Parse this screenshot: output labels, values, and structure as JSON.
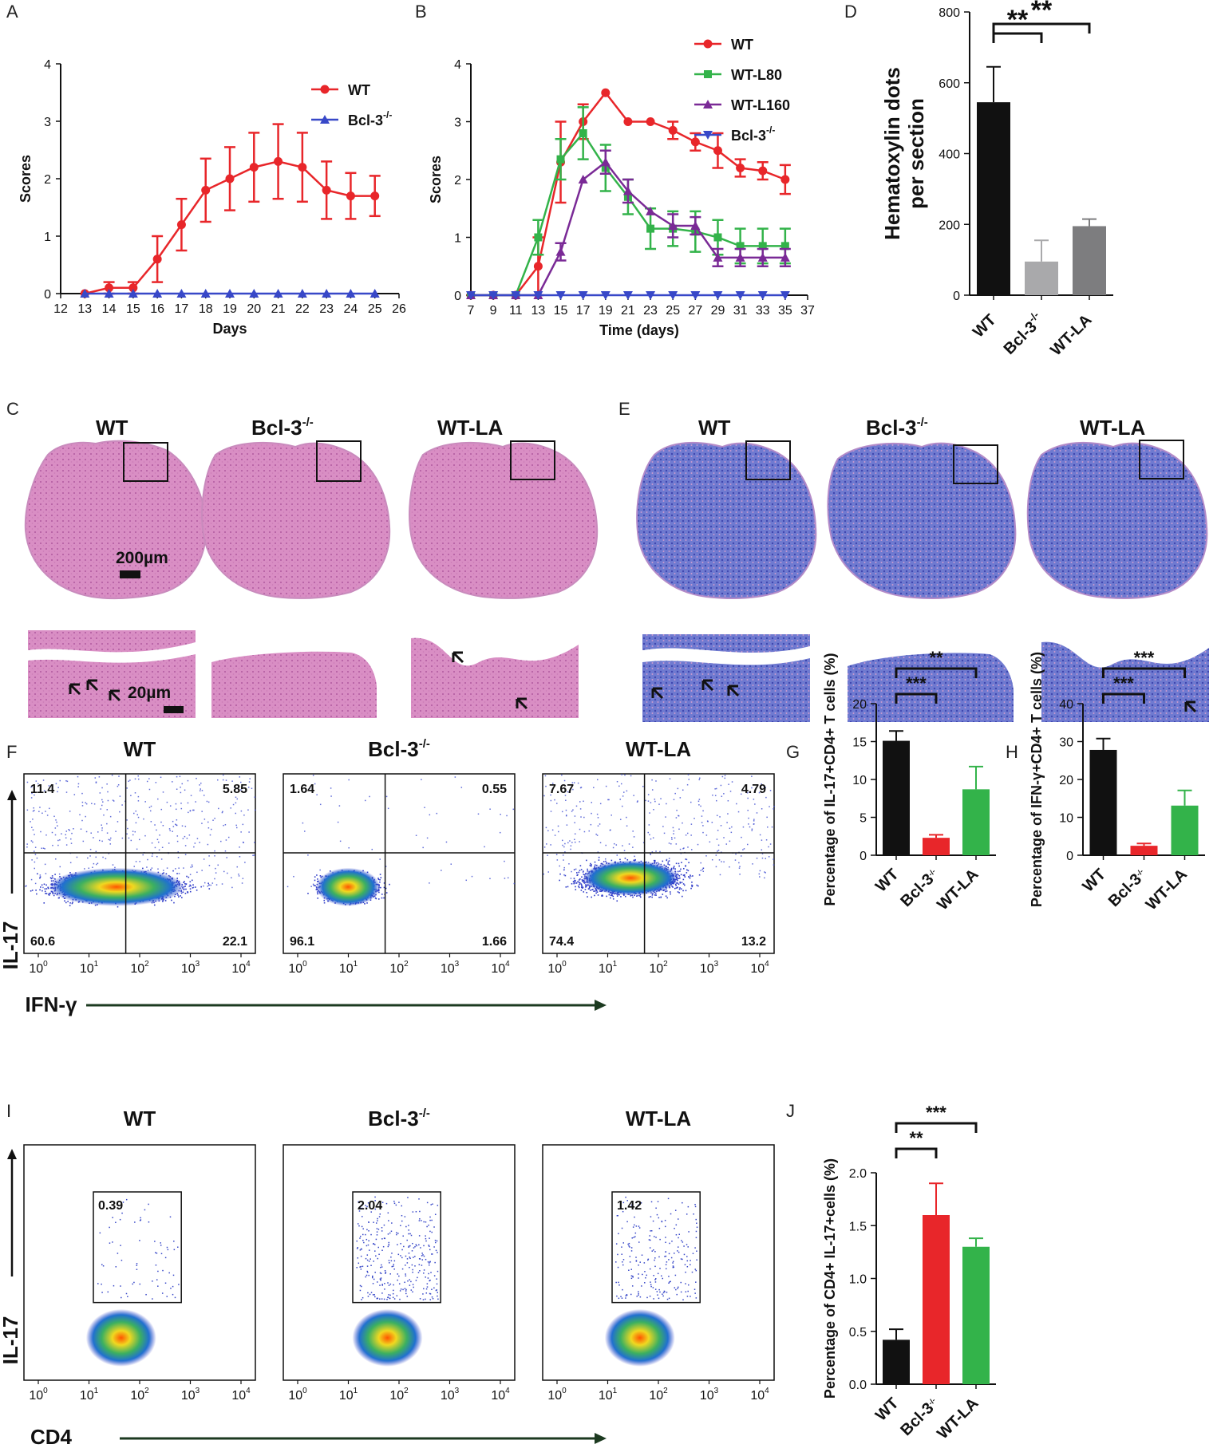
{
  "panel_letters": {
    "a": "A",
    "b": "B",
    "c": "C",
    "d": "D",
    "e": "E",
    "f": "F",
    "g": "G",
    "h": "H",
    "i": "I",
    "j": "J"
  },
  "colors": {
    "wt": "#e8262a",
    "ko": "#3848c8",
    "green": "#33b34a",
    "purple": "#7a2a96",
    "black": "#111111",
    "gray1": "#a9a9ab",
    "gray2": "#7d7d7f"
  },
  "chart_data": [
    {
      "id": "A",
      "type": "line",
      "title": "",
      "xlabel": "Days",
      "ylabel": "Scores",
      "xlim": [
        12,
        26
      ],
      "ylim": [
        0,
        4
      ],
      "xticks": [
        "12",
        "13",
        "14",
        "15",
        "16",
        "17",
        "18",
        "19",
        "20",
        "21",
        "22",
        "23",
        "24",
        "25",
        "26"
      ],
      "yticks": [
        "0",
        "1",
        "2",
        "3",
        "4"
      ],
      "series": [
        {
          "name": "WT",
          "color": "#e8262a",
          "marker": "circle",
          "x": [
            13,
            14,
            15,
            16,
            17,
            18,
            19,
            20,
            21,
            22,
            23,
            24,
            25
          ],
          "y": [
            0,
            0.1,
            0.1,
            0.6,
            1.2,
            1.8,
            2.0,
            2.2,
            2.3,
            2.2,
            1.8,
            1.7,
            1.7
          ],
          "err": [
            0,
            0.1,
            0.1,
            0.4,
            0.45,
            0.55,
            0.55,
            0.6,
            0.65,
            0.6,
            0.5,
            0.4,
            0.35
          ]
        },
        {
          "name": "Bcl-3",
          "sup": "-/-",
          "color": "#3848c8",
          "marker": "triangle",
          "x": [
            13,
            14,
            15,
            16,
            17,
            18,
            19,
            20,
            21,
            22,
            23,
            24,
            25
          ],
          "y": [
            0,
            0,
            0,
            0,
            0,
            0,
            0,
            0,
            0,
            0,
            0,
            0,
            0
          ],
          "err": [
            0,
            0,
            0,
            0,
            0,
            0,
            0,
            0,
            0,
            0,
            0,
            0,
            0
          ]
        }
      ]
    },
    {
      "id": "B",
      "type": "line",
      "title": "",
      "xlabel": "Time (days)",
      "ylabel": "Scores",
      "xlim": [
        7,
        37
      ],
      "ylim": [
        0,
        4
      ],
      "xticks": [
        "7",
        "9",
        "11",
        "13",
        "15",
        "17",
        "19",
        "21",
        "23",
        "25",
        "27",
        "29",
        "31",
        "33",
        "35",
        "37"
      ],
      "yticks": [
        "0",
        "1",
        "2",
        "3",
        "4"
      ],
      "series": [
        {
          "name": "WT",
          "color": "#e8262a",
          "marker": "circle",
          "x": [
            7,
            9,
            11,
            13,
            15,
            17,
            19,
            21,
            23,
            25,
            27,
            29,
            31,
            33,
            35
          ],
          "y": [
            0,
            0,
            0,
            0.5,
            2.3,
            3.0,
            3.5,
            3.0,
            3.0,
            2.85,
            2.65,
            2.5,
            2.2,
            2.15,
            2.0
          ],
          "err": [
            0,
            0,
            0,
            0.5,
            0.7,
            0.3,
            0,
            0,
            0,
            0.15,
            0.15,
            0.3,
            0.15,
            0.15,
            0.25
          ]
        },
        {
          "name": "WT-L80",
          "color": "#33b34a",
          "marker": "square",
          "x": [
            7,
            9,
            11,
            13,
            15,
            17,
            19,
            21,
            23,
            25,
            27,
            29,
            31,
            33,
            35
          ],
          "y": [
            0,
            0,
            0,
            1.0,
            2.35,
            2.8,
            2.2,
            1.7,
            1.15,
            1.15,
            1.1,
            1.0,
            0.85,
            0.85,
            0.85
          ],
          "err": [
            0,
            0,
            0,
            0.3,
            0.35,
            0.45,
            0.4,
            0.3,
            0.35,
            0.3,
            0.35,
            0.3,
            0.3,
            0.3,
            0.3
          ]
        },
        {
          "name": "WT-L160",
          "color": "#7a2a96",
          "marker": "triangle",
          "x": [
            7,
            9,
            11,
            13,
            15,
            17,
            19,
            21,
            23,
            25,
            27,
            29,
            31,
            33,
            35
          ],
          "y": [
            0,
            0,
            0,
            0,
            0.75,
            2.0,
            2.3,
            1.8,
            1.45,
            1.2,
            1.2,
            0.65,
            0.65,
            0.65,
            0.65
          ],
          "err": [
            0,
            0,
            0,
            0,
            0.15,
            0,
            0.2,
            0.2,
            0,
            0.2,
            0.15,
            0.15,
            0.15,
            0.15,
            0.15
          ]
        },
        {
          "name": "Bcl-3",
          "sup": "-/-",
          "color": "#3848c8",
          "marker": "dtriangle",
          "x": [
            7,
            9,
            11,
            13,
            15,
            17,
            19,
            21,
            23,
            25,
            27,
            29,
            31,
            33,
            35
          ],
          "y": [
            0,
            0,
            0,
            0,
            0,
            0,
            0,
            0,
            0,
            0,
            0,
            0,
            0,
            0,
            0
          ],
          "err": [
            0,
            0,
            0,
            0,
            0,
            0,
            0,
            0,
            0,
            0,
            0,
            0,
            0,
            0,
            0
          ]
        }
      ]
    },
    {
      "id": "D",
      "type": "bar",
      "title": "",
      "xlabel": "",
      "ylabel": "Hematoxylin dots per section",
      "ylabel_lines": [
        "Hematoxylin dots",
        "per section"
      ],
      "ylim": [
        0,
        800
      ],
      "yticks": [
        "0",
        "200",
        "400",
        "600",
        "800"
      ],
      "categories": [
        "WT",
        "Bcl-3",
        "WT-LA"
      ],
      "category_sup": [
        "",
        "-/-",
        ""
      ],
      "values": [
        545,
        95,
        195
      ],
      "errors": [
        100,
        60,
        20
      ],
      "colors": [
        "#111111",
        "#a9a9ab",
        "#7d7d7f"
      ],
      "significance": [
        {
          "from": 0,
          "to": 1,
          "label": "**"
        },
        {
          "from": 0,
          "to": 2,
          "label": "**"
        }
      ]
    },
    {
      "id": "G",
      "type": "bar",
      "title": "",
      "xlabel": "",
      "ylabel": "Percentage of IL-17+CD4+ T cells (%)",
      "ylim": [
        0,
        20
      ],
      "yticks": [
        "0",
        "5",
        "10",
        "15",
        "20"
      ],
      "categories": [
        "WT",
        "Bcl-3",
        "WT-LA"
      ],
      "category_sup": [
        "",
        "-/-",
        ""
      ],
      "values": [
        15.1,
        2.3,
        8.7
      ],
      "errors": [
        1.3,
        0.4,
        3.0
      ],
      "colors": [
        "#111111",
        "#e8262a",
        "#33b34a"
      ],
      "significance": [
        {
          "from": 0,
          "to": 1,
          "label": "***"
        },
        {
          "from": 0,
          "to": 2,
          "label": "**"
        }
      ]
    },
    {
      "id": "H",
      "type": "bar",
      "title": "",
      "xlabel": "",
      "ylabel": "Percentage of IFN-γ+CD4+ T cells (%)",
      "ylim": [
        0,
        40
      ],
      "yticks": [
        "0",
        "10",
        "20",
        "30",
        "40"
      ],
      "categories": [
        "WT",
        "Bcl-3",
        "WT-LA"
      ],
      "category_sup": [
        "",
        "-/-",
        ""
      ],
      "values": [
        27.8,
        2.5,
        13.1
      ],
      "errors": [
        3.0,
        0.6,
        4.0
      ],
      "colors": [
        "#111111",
        "#e8262a",
        "#33b34a"
      ],
      "significance": [
        {
          "from": 0,
          "to": 1,
          "label": "***"
        },
        {
          "from": 0,
          "to": 2,
          "label": "***"
        }
      ]
    },
    {
      "id": "J",
      "type": "bar",
      "title": "",
      "xlabel": "",
      "ylabel": "Percentage of CD4+ IL-17+cells (%)",
      "ylim": [
        0,
        2.0
      ],
      "yticks": [
        "0.0",
        "0.5",
        "1.0",
        "1.5",
        "2.0"
      ],
      "categories": [
        "WT",
        "Bcl-3",
        "WT-LA"
      ],
      "category_sup": [
        "",
        "-/-",
        ""
      ],
      "values": [
        0.42,
        1.6,
        1.3
      ],
      "errors": [
        0.1,
        0.3,
        0.08
      ],
      "colors": [
        "#111111",
        "#e8262a",
        "#33b34a"
      ],
      "significance": [
        {
          "from": 0,
          "to": 1,
          "label": "**"
        },
        {
          "from": 0,
          "to": 2,
          "label": "***"
        }
      ]
    }
  ],
  "histology": {
    "labels": [
      "WT",
      "Bcl-3",
      "WT-LA"
    ],
    "label_sup": [
      "",
      "-/-",
      ""
    ],
    "scale_large": "200µm",
    "scale_small": "20µm"
  },
  "flow_F": {
    "titles": [
      "WT",
      "Bcl-3",
      "WT-LA"
    ],
    "title_sup": [
      "",
      "-/-",
      ""
    ],
    "quadrants": [
      {
        "ul": "11.4",
        "ur": "5.85",
        "ll": "60.6",
        "lr": "22.1"
      },
      {
        "ul": "1.64",
        "ur": "0.55",
        "ll": "96.1",
        "lr": "1.66"
      },
      {
        "ul": "7.67",
        "ur": "4.79",
        "ll": "74.4",
        "lr": "13.2"
      }
    ],
    "x_label": "IFN-γ",
    "y_label": "IL-17",
    "x_ticks": [
      "10",
      "10",
      "10",
      "10",
      "10"
    ],
    "x_exps": [
      "0",
      "1",
      "2",
      "3",
      "4"
    ]
  },
  "flow_I": {
    "titles": [
      "WT",
      "Bcl-3",
      "WT-LA"
    ],
    "title_sup": [
      "",
      "-/-",
      ""
    ],
    "gates": [
      "0.39",
      "2.04",
      "1.42"
    ],
    "x_label": "CD4",
    "y_label": "IL-17",
    "x_ticks": [
      "10",
      "10",
      "10",
      "10",
      "10"
    ],
    "x_exps": [
      "0",
      "1",
      "2",
      "3",
      "4"
    ]
  }
}
